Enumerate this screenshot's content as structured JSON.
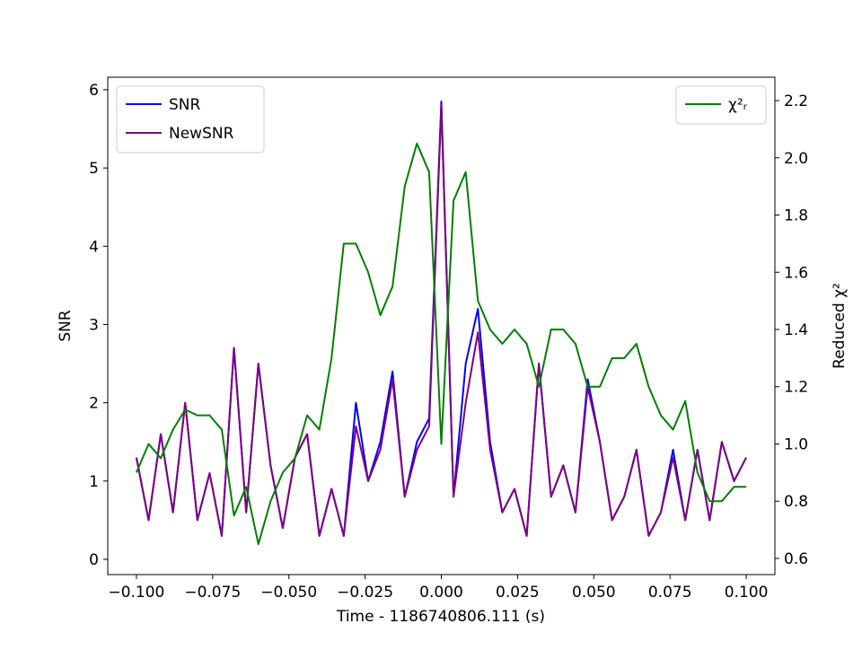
{
  "chart_data": {
    "type": "line",
    "xlabel": "Time - 1186740806.111 (s)",
    "ylabel": "SNR",
    "y2label": "Reduced χ²",
    "x": [
      -0.1,
      -0.096,
      -0.092,
      -0.088,
      -0.084,
      -0.08,
      -0.076,
      -0.072,
      -0.068,
      -0.064,
      -0.06,
      -0.056,
      -0.052,
      -0.048,
      -0.044,
      -0.04,
      -0.036,
      -0.032,
      -0.028,
      -0.024,
      -0.02,
      -0.016,
      -0.012,
      -0.008,
      -0.004,
      0.0,
      0.004,
      0.008,
      0.012,
      0.016,
      0.02,
      0.024,
      0.028,
      0.032,
      0.036,
      0.04,
      0.044,
      0.048,
      0.052,
      0.056,
      0.06,
      0.064,
      0.068,
      0.072,
      0.076,
      0.08,
      0.084,
      0.088,
      0.092,
      0.096,
      0.1
    ],
    "series": [
      {
        "name": "SNR",
        "color": "#0000ff",
        "axis": "y",
        "values": [
          1.3,
          0.5,
          1.6,
          0.6,
          2.0,
          0.5,
          1.1,
          0.3,
          2.7,
          0.6,
          2.5,
          1.2,
          0.4,
          1.3,
          1.6,
          0.3,
          0.9,
          0.3,
          2.0,
          1.0,
          1.5,
          2.4,
          0.8,
          1.5,
          1.8,
          5.85,
          0.8,
          2.5,
          3.2,
          1.5,
          0.6,
          0.9,
          0.3,
          2.5,
          0.8,
          1.2,
          0.6,
          2.3,
          1.5,
          0.5,
          0.8,
          1.4,
          0.3,
          0.6,
          1.4,
          0.5,
          1.4,
          0.5,
          1.5,
          1.0,
          1.3
        ]
      },
      {
        "name": "NewSNR",
        "color": "#800080",
        "axis": "y",
        "values": [
          1.3,
          0.5,
          1.6,
          0.6,
          2.0,
          0.5,
          1.1,
          0.3,
          2.7,
          0.6,
          2.5,
          1.2,
          0.4,
          1.3,
          1.6,
          0.3,
          0.9,
          0.3,
          1.7,
          1.0,
          1.4,
          2.3,
          0.8,
          1.4,
          1.7,
          5.8,
          0.8,
          2.0,
          2.9,
          1.4,
          0.6,
          0.9,
          0.3,
          2.5,
          0.8,
          1.2,
          0.6,
          2.2,
          1.5,
          0.5,
          0.8,
          1.4,
          0.3,
          0.6,
          1.3,
          0.5,
          1.4,
          0.5,
          1.5,
          1.0,
          1.3
        ]
      },
      {
        "name": "χ²ᵣ",
        "color": "#008000",
        "axis": "y2",
        "values": [
          0.9,
          1.0,
          0.95,
          1.05,
          1.12,
          1.1,
          1.1,
          1.05,
          0.75,
          0.85,
          0.65,
          0.8,
          0.9,
          0.95,
          1.1,
          1.05,
          1.3,
          1.7,
          1.7,
          1.6,
          1.45,
          1.55,
          1.9,
          2.05,
          1.95,
          1.0,
          1.85,
          1.95,
          1.5,
          1.4,
          1.35,
          1.4,
          1.35,
          1.2,
          1.4,
          1.4,
          1.35,
          1.2,
          1.2,
          1.3,
          1.3,
          1.35,
          1.2,
          1.1,
          1.05,
          1.15,
          0.9,
          0.8,
          0.8,
          0.85,
          0.85
        ]
      }
    ],
    "xlim": [
      -0.1094,
      0.1094
    ],
    "xticks": [
      {
        "value": -0.1,
        "label": "−0.100"
      },
      {
        "value": -0.075,
        "label": "−0.075"
      },
      {
        "value": -0.05,
        "label": "−0.050"
      },
      {
        "value": -0.025,
        "label": "−0.025"
      },
      {
        "value": 0,
        "label": "0.000"
      },
      {
        "value": 0.025,
        "label": "0.025"
      },
      {
        "value": 0.05,
        "label": "0.050"
      },
      {
        "value": 0.075,
        "label": "0.075"
      },
      {
        "value": 0.1,
        "label": "0.100"
      }
    ],
    "ylim": [
      -0.195,
      6.16
    ],
    "yticks": [
      0,
      1,
      2,
      3,
      4,
      5,
      6
    ],
    "y2lim": [
      0.5435,
      2.2816
    ],
    "y2ticks": [
      0.6,
      0.8,
      {
        "value": 1.0,
        "label": "1.0"
      },
      1.2,
      1.4,
      1.6,
      1.8,
      {
        "value": 2.0,
        "label": "2.0"
      },
      2.2
    ],
    "legend": "upper left",
    "legend2": "upper right"
  }
}
